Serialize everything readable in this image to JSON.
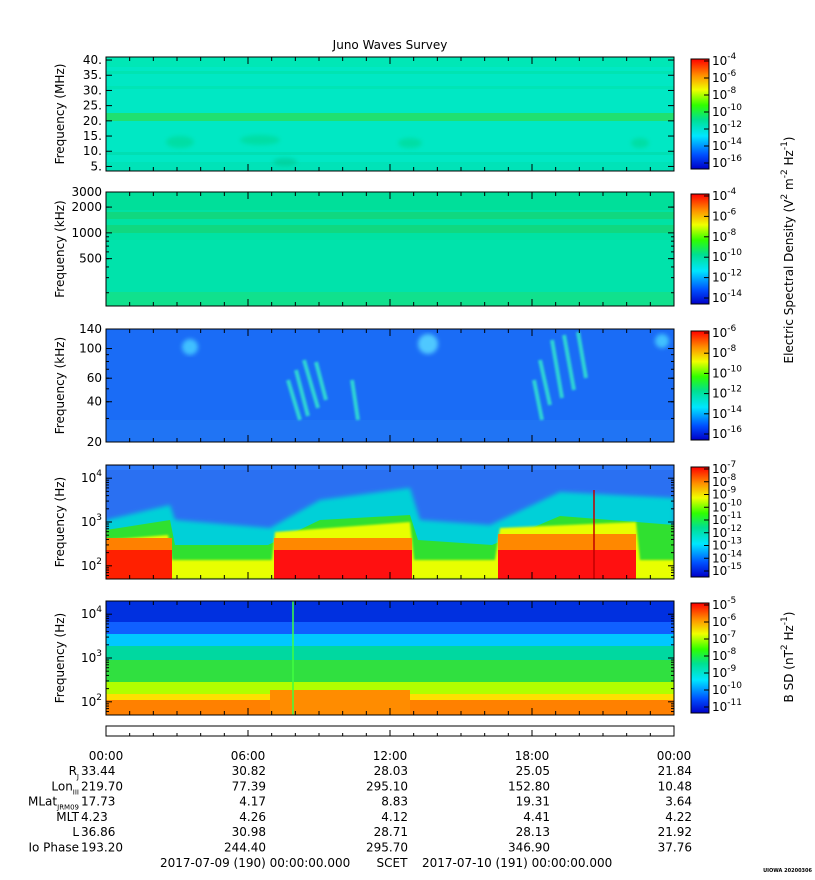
{
  "title": "Juno Waves Survey",
  "stamp": "UIOWA 20200306",
  "chart_data": [
    {
      "type": "heatmap",
      "ylabel": "Frequency (MHz)",
      "y_scale": "linear",
      "ylim": [
        3.5,
        41
      ],
      "yticks": [
        {
          "v": 5,
          "label": "5."
        },
        {
          "v": 10,
          "label": "10."
        },
        {
          "v": 15,
          "label": "15."
        },
        {
          "v": 20,
          "label": "20."
        },
        {
          "v": 25,
          "label": "25."
        },
        {
          "v": 30,
          "label": "30."
        },
        {
          "v": 35,
          "label": "35."
        },
        {
          "v": 40,
          "label": "40."
        }
      ],
      "colorbar": {
        "labels": [
          "10-4",
          "10-6",
          "10-8",
          "10-10",
          "10-12",
          "10-14",
          "10-16"
        ],
        "minor_ticks": 13
      }
    },
    {
      "type": "heatmap",
      "ylabel": "Frequency (kHz)",
      "y_scale": "log",
      "ylim": [
        140,
        3000
      ],
      "yticks": [
        {
          "v": 500,
          "label": "500"
        },
        {
          "v": 1000,
          "label": "1000"
        },
        {
          "v": 2000,
          "label": "2000"
        },
        {
          "v": 3000,
          "label": "3000"
        }
      ],
      "colorbar": {
        "labels": [
          "10-4",
          "10-6",
          "10-8",
          "10-10",
          "10-12",
          "10-14"
        ],
        "minor_ticks": 11
      }
    },
    {
      "type": "heatmap",
      "ylabel": "Frequency (kHz)",
      "y_scale": "log",
      "ylim": [
        20,
        140
      ],
      "yticks": [
        {
          "v": 20,
          "label": "20"
        },
        {
          "v": 40,
          "label": "40"
        },
        {
          "v": 60,
          "label": "60"
        },
        {
          "v": 100,
          "label": "100"
        },
        {
          "v": 140,
          "label": "140"
        }
      ],
      "colorbar": {
        "labels": [
          "10-6",
          "10-8",
          "10-10",
          "10-12",
          "10-14",
          "10-16"
        ],
        "minor_ticks": 11
      }
    },
    {
      "type": "heatmap",
      "ylabel": "Frequency (Hz)",
      "y_scale": "log",
      "ylim": [
        50,
        20000
      ],
      "yticks": [
        {
          "v": 100,
          "label": "10",
          "sup": "2"
        },
        {
          "v": 1000,
          "label": "10",
          "sup": "3"
        },
        {
          "v": 10000,
          "label": "10",
          "sup": "4"
        }
      ],
      "colorbar": {
        "labels": [
          "10-7",
          "10-8",
          "10-9",
          "10-10",
          "10-11",
          "10-12",
          "10-13",
          "10-14",
          "10-15"
        ],
        "minor_ticks": 9
      }
    },
    {
      "type": "heatmap",
      "ylabel": "Frequency (Hz)",
      "y_scale": "log",
      "ylim": [
        50,
        20000
      ],
      "yticks": [
        {
          "v": 100,
          "label": "10",
          "sup": "2"
        },
        {
          "v": 1000,
          "label": "10",
          "sup": "3"
        },
        {
          "v": 10000,
          "label": "10",
          "sup": "4"
        }
      ],
      "colorbar": {
        "labels": [
          "10-5",
          "10-6",
          "10-7",
          "10-8",
          "10-9",
          "10-10",
          "10-11"
        ],
        "minor_ticks": 7
      }
    }
  ],
  "colorbar_title_e": "Electric Spectral Density (V",
  "colorbar_title_e_parts": [
    "Electric Spectral Density (V",
    "2",
    " m",
    "-2",
    " Hz",
    "-1",
    ")"
  ],
  "colorbar_title_b_parts": [
    "B SD (nT",
    "2",
    " Hz",
    "-1",
    ")"
  ],
  "time_axis": {
    "ticks": [
      "00:00",
      "06:00",
      "12:00",
      "18:00",
      "00:00"
    ],
    "hours": [
      0,
      6,
      12,
      18,
      24
    ]
  },
  "ephemeris": [
    {
      "label": "R",
      "sub": "J",
      "values": [
        "33.44",
        "30.82",
        "28.03",
        "25.05",
        "21.84"
      ]
    },
    {
      "label": "Lon",
      "sub": "III",
      "values": [
        "219.70",
        "77.39",
        "295.10",
        "152.80",
        "10.48"
      ]
    },
    {
      "label": "MLat",
      "sub": "JRM09",
      "values": [
        "17.73",
        "4.17",
        "8.83",
        "19.31",
        "3.64"
      ]
    },
    {
      "label": "MLT",
      "sub": "",
      "values": [
        "4.23",
        "4.26",
        "4.12",
        "4.41",
        "4.22"
      ]
    },
    {
      "label": "L",
      "sub": "",
      "values": [
        "36.86",
        "30.98",
        "28.71",
        "28.13",
        "21.92"
      ]
    },
    {
      "label": "Io Phase",
      "sub": "",
      "values": [
        "193.20",
        "244.40",
        "295.70",
        "346.90",
        "37.76"
      ]
    }
  ],
  "scet": {
    "start": "2017-07-09 (190) 00:00:00.000",
    "label": "SCET",
    "end": "2017-07-10 (191) 00:00:00.000"
  }
}
